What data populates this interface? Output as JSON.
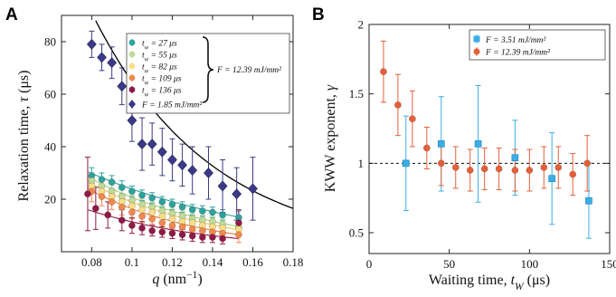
{
  "chart_data": [
    {
      "panel": "A",
      "type": "scatter",
      "xlabel": "q (nm⁻¹)",
      "ylabel": "Relaxation time, τ (μs)",
      "xlim": [
        0.065,
        0.18
      ],
      "ylim": [
        0,
        90
      ],
      "xticks": [
        0.08,
        0.1,
        0.12,
        0.14,
        0.16,
        0.18
      ],
      "xtick_labels": [
        "0.08",
        "0.1",
        "0.12",
        "0.14",
        "0.16",
        "0.18"
      ],
      "yticks": [
        20,
        40,
        60,
        80
      ],
      "ytick_labels": [
        "20",
        "40",
        "60",
        "80"
      ],
      "grid": false,
      "legend_position": "top-right",
      "group_label": "F = 12.39 mJ/mm²",
      "series": [
        {
          "name": "tw = 27 μs",
          "color": "#2aa3a0",
          "x": [
            0.08,
            0.085,
            0.09,
            0.095,
            0.1,
            0.105,
            0.11,
            0.115,
            0.12,
            0.125,
            0.13,
            0.135,
            0.14,
            0.145,
            0.153
          ],
          "y": [
            29,
            27.5,
            26.5,
            24.5,
            23,
            21.5,
            20.5,
            19,
            18,
            17,
            16,
            15.5,
            15,
            14,
            13
          ],
          "err": [
            3,
            2.5,
            2.5,
            2.5,
            2,
            2,
            2,
            2,
            2,
            2,
            2,
            2,
            2,
            2,
            2.5
          ]
        },
        {
          "name": "tw = 55 μs",
          "color": "#bfdc9a",
          "x": [
            0.08,
            0.085,
            0.09,
            0.095,
            0.1,
            0.105,
            0.11,
            0.115,
            0.12,
            0.125,
            0.13,
            0.135,
            0.14,
            0.145,
            0.153
          ],
          "y": [
            27,
            25,
            23,
            21,
            19.5,
            18,
            17,
            15.5,
            14.5,
            13.5,
            12.5,
            12,
            11.5,
            10.5,
            9.5
          ],
          "err": [
            3,
            2.5,
            2.5,
            2.5,
            2,
            2,
            2,
            2,
            2,
            2,
            2,
            2,
            2,
            2,
            2.5
          ]
        },
        {
          "name": "tw = 82 μs",
          "color": "#f5e08a",
          "x": [
            0.08,
            0.085,
            0.09,
            0.095,
            0.1,
            0.105,
            0.11,
            0.115,
            0.12,
            0.125,
            0.13,
            0.135,
            0.14,
            0.145,
            0.153
          ],
          "y": [
            25,
            23,
            21,
            19,
            17.5,
            16,
            15,
            13.5,
            12.5,
            11.5,
            11,
            10,
            9.5,
            9,
            8.5
          ],
          "err": [
            3,
            2.5,
            2.5,
            2.5,
            2,
            2,
            2,
            2,
            2,
            2,
            2,
            2,
            2,
            2,
            2.5
          ]
        },
        {
          "name": "tw = 109 μs",
          "color": "#ee8a4f",
          "x": [
            0.08,
            0.085,
            0.09,
            0.095,
            0.1,
            0.105,
            0.11,
            0.115,
            0.12,
            0.125,
            0.13,
            0.135,
            0.14,
            0.145,
            0.153
          ],
          "y": [
            23,
            21,
            19,
            17,
            15,
            13.5,
            12.5,
            11,
            10,
            9.5,
            8.5,
            8,
            7.5,
            7,
            6.5
          ],
          "err": [
            4,
            3.5,
            3,
            3,
            2.5,
            2.5,
            2,
            2,
            2,
            2,
            2,
            2,
            2,
            2,
            3
          ]
        },
        {
          "name": "tw = 136 μs",
          "color": "#8e1a49",
          "x": [
            0.078,
            0.082,
            0.088,
            0.095,
            0.1,
            0.105,
            0.11,
            0.115,
            0.12,
            0.125,
            0.13,
            0.135,
            0.14,
            0.145,
            0.153
          ],
          "y": [
            22,
            16.5,
            14,
            12,
            10,
            9,
            8,
            7.5,
            7,
            6.5,
            6,
            5.5,
            5.5,
            5,
            11
          ],
          "err": [
            14,
            8,
            5,
            4,
            3,
            2.5,
            2,
            2,
            2,
            2,
            2,
            2,
            2,
            2,
            5
          ]
        },
        {
          "name": "F = 1.85 mJ/mm²",
          "color": "#3b3a86",
          "x": [
            0.08,
            0.085,
            0.09,
            0.095,
            0.1,
            0.105,
            0.11,
            0.115,
            0.12,
            0.125,
            0.13,
            0.138,
            0.145,
            0.152,
            0.16
          ],
          "y": [
            79,
            74,
            72,
            63,
            50,
            41,
            41,
            38,
            35,
            33,
            31,
            30,
            25,
            22,
            24
          ],
          "err": [
            5,
            5,
            6,
            7,
            8,
            10,
            8,
            9,
            8,
            8,
            9,
            10,
            10,
            10,
            12
          ]
        }
      ],
      "fits": [
        {
          "series": "tw = 27 μs",
          "color": "#2aa3a0",
          "x": [
            0.078,
            0.153
          ],
          "y0": 30.5,
          "y1": 13.2
        },
        {
          "series": "tw = 55 μs",
          "color": "#a8cf7e",
          "x": [
            0.078,
            0.153
          ],
          "y0": 28.5,
          "y1": 9.6
        },
        {
          "series": "tw = 82 μs",
          "color": "#e8cc55",
          "x": [
            0.078,
            0.153
          ],
          "y0": 26.5,
          "y1": 8.4
        },
        {
          "series": "tw = 109 μs",
          "color": "#e07a40",
          "x": [
            0.078,
            0.153
          ],
          "y0": 24,
          "y1": 6.5
        },
        {
          "series": "tw = 136 μs",
          "color": "#8e1a49",
          "x": [
            0.078,
            0.153
          ],
          "y0": 16,
          "y1": 5
        },
        {
          "series": "F = 1.85 mJ/mm²",
          "color": "#000000",
          "x": [
            0.082,
            0.18
          ],
          "y0": 88,
          "y1": 16.5
        }
      ]
    },
    {
      "panel": "B",
      "type": "scatter",
      "xlabel": "Waiting time, tw (μs)",
      "ylabel": "KWW exponent, γ",
      "xlim": [
        0,
        150
      ],
      "ylim": [
        0.35,
        2
      ],
      "xticks": [
        0,
        50,
        100,
        150
      ],
      "xtick_labels": [
        "0",
        "50",
        "100",
        "150"
      ],
      "yticks": [
        0.5,
        1,
        1.5,
        2
      ],
      "ytick_labels": [
        "0.5",
        "1",
        "1.5",
        "2"
      ],
      "reference_line": 1,
      "grid": false,
      "legend_position": "top-right",
      "series": [
        {
          "name": "F = 3.51 mJ/mm²",
          "color": "#3aaee6",
          "marker": "square",
          "x": [
            23,
            45,
            68,
            91,
            114,
            137
          ],
          "y": [
            1.0,
            1.14,
            1.14,
            1.04,
            0.89,
            0.73
          ],
          "err": [
            0.34,
            0.34,
            0.42,
            0.27,
            0.33,
            0.27
          ]
        },
        {
          "name": "F = 12.39 mJ/mm²",
          "color": "#e2603a",
          "marker": "circle",
          "x": [
            9,
            18,
            27,
            36,
            45,
            54,
            63,
            72,
            81,
            91,
            100,
            109,
            118,
            127,
            136
          ],
          "y": [
            1.66,
            1.42,
            1.32,
            1.11,
            1.0,
            0.97,
            0.95,
            0.96,
            0.96,
            0.95,
            0.95,
            0.97,
            0.97,
            0.92,
            1.0
          ],
          "err": [
            0.22,
            0.22,
            0.2,
            0.15,
            0.16,
            0.15,
            0.15,
            0.15,
            0.15,
            0.15,
            0.15,
            0.15,
            0.15,
            0.15,
            0.2
          ]
        }
      ]
    }
  ]
}
